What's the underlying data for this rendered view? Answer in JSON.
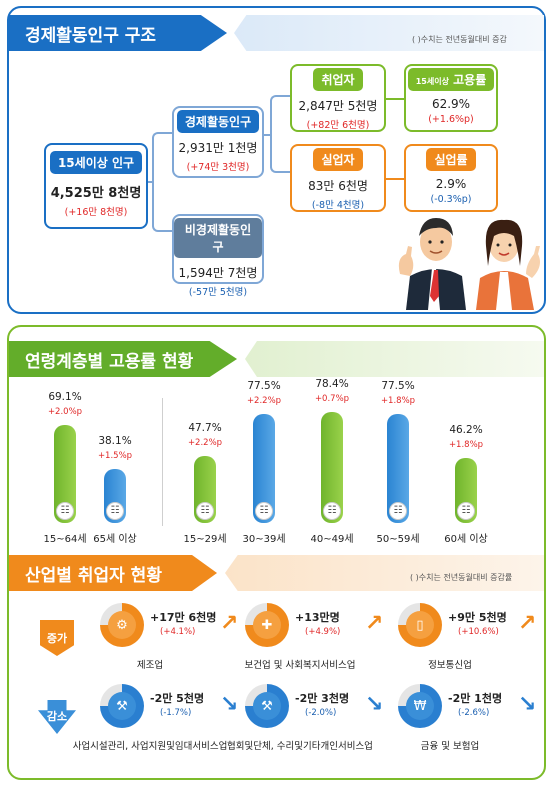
{
  "section1": {
    "title": "경제활동인구 구조",
    "note": "( )수치는 전년동월대비 증감",
    "pop15": {
      "label": "15세이상 인구",
      "value": "4,525만 8천명",
      "delta": "(+16만 8천명)"
    },
    "active": {
      "label": "경제활동인구",
      "value": "2,931만 1천명",
      "delta": "(+74만 3천명)"
    },
    "inactive": {
      "label": "비경제활동인구",
      "value": "1,594만 7천명",
      "delta": "(-57만 5천명)"
    },
    "employed": {
      "label": "취업자",
      "value": "2,847만 5천명",
      "delta": "(+82만 6천명)"
    },
    "unemployed": {
      "label": "실업자",
      "value": "83만 6천명",
      "delta": "(-8만 4천명)"
    },
    "emp_rate": {
      "label_prefix": "15세이상",
      "label": "고용률",
      "value": "62.9%",
      "delta": "(+1.6%p)"
    },
    "unemp_rate": {
      "label": "실업률",
      "value": "2.9%",
      "delta": "(-0.3%p)"
    }
  },
  "section2": {
    "title": "연령계층별 고용률 현황"
  },
  "chart_data": {
    "type": "bar",
    "title": "연령계층별 고용률 현황",
    "categories": [
      "15~64세",
      "65세 이상",
      "15~29세",
      "30~39세",
      "40~49세",
      "50~59세",
      "60세 이상"
    ],
    "values": [
      69.1,
      38.1,
      47.7,
      77.5,
      78.4,
      77.5,
      46.2
    ],
    "value_labels": [
      "69.1%",
      "38.1%",
      "47.7%",
      "77.5%",
      "78.4%",
      "77.5%",
      "46.2%"
    ],
    "deltas": [
      "+2.0%p",
      "+1.5%p",
      "+2.2%p",
      "+2.2%p",
      "+0.7%p",
      "+1.8%p",
      "+1.8%p"
    ],
    "colors": [
      "#6fb42c",
      "#2a84d2",
      "#6fb42c",
      "#2a84d2",
      "#6fb42c",
      "#2a84d2",
      "#6fb42c"
    ],
    "ylim": [
      0,
      100
    ]
  },
  "section3": {
    "title": "산업별 취업자 현황",
    "note": "( )수치는 전년동월대비 증감률",
    "increase_label": "증가",
    "decrease_label": "감소",
    "increase": [
      {
        "name": "제조업",
        "value": "+17만 6천명",
        "rate": "(+4.1%)",
        "icon": "gears-icon"
      },
      {
        "name": "보건업 및 사회복지서비스업",
        "value": "+13만명",
        "rate": "(+4.9%)",
        "icon": "first-aid-kit-icon"
      },
      {
        "name": "정보통신업",
        "value": "+9만 5천명",
        "rate": "(+10.6%)",
        "icon": "smartphone-icon"
      }
    ],
    "decrease": [
      {
        "name": "사업시설관리, 사업지원및임대서비스업",
        "value": "-2만 5천명",
        "rate": "(-1.7%)",
        "icon": "people-tools-icon"
      },
      {
        "name": "협회및단체, 수리및기타개인서비스업",
        "value": "-2만 3천명",
        "rate": "(-2.0%)",
        "icon": "wrench-icon"
      },
      {
        "name": "금융 및 보험업",
        "value": "-2만 1천명",
        "rate": "(-2.6%)",
        "icon": "won-laptop-icon"
      }
    ]
  },
  "colors": {
    "blue": "#1a6fc4",
    "green": "#63ad2a",
    "orange": "#f08a1c",
    "red": "#e02828"
  }
}
